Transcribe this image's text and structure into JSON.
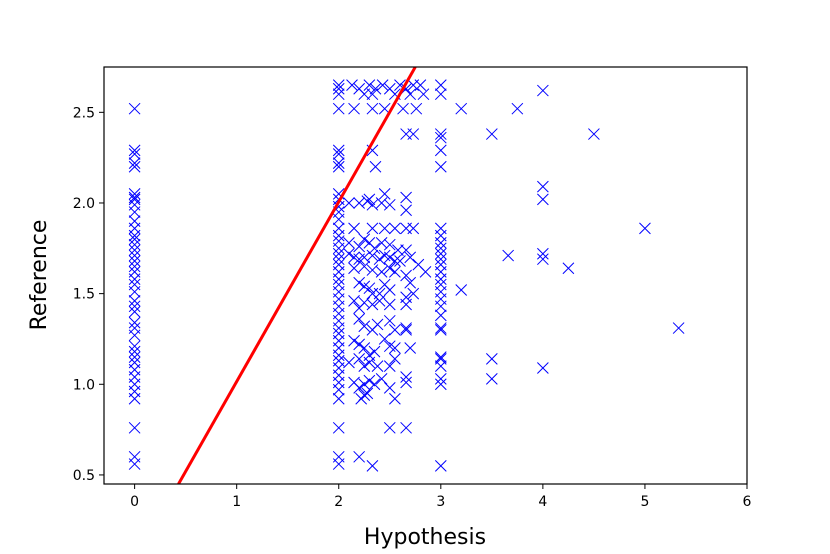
{
  "chart_data": {
    "type": "scatter",
    "title": "",
    "xlabel": "Hypothesis",
    "ylabel": "Reference",
    "xlim": [
      -0.3,
      6.0
    ],
    "ylim": [
      0.45,
      2.75
    ],
    "grid": false,
    "x_ticks": [
      "0",
      "1",
      "2",
      "3",
      "4",
      "5",
      "6"
    ],
    "y_ticks": [
      "0.5",
      "1.0",
      "1.5",
      "2.0",
      "2.5"
    ],
    "marker": "x",
    "marker_color": "#0000ff",
    "line_color": "#ff0000",
    "series": [
      {
        "type": "scatter",
        "points": [
          [
            0,
            2.52
          ],
          [
            0,
            2.29
          ],
          [
            0,
            2.27
          ],
          [
            0,
            2.22
          ],
          [
            0,
            2.2
          ],
          [
            0,
            2.05
          ],
          [
            0,
            2.03
          ],
          [
            0,
            2.02
          ],
          [
            0,
            1.99
          ],
          [
            0,
            1.95
          ],
          [
            0,
            1.9
          ],
          [
            0,
            1.86
          ],
          [
            0,
            1.82
          ],
          [
            0,
            1.8
          ],
          [
            0,
            1.77
          ],
          [
            0,
            1.74
          ],
          [
            0,
            1.71
          ],
          [
            0,
            1.68
          ],
          [
            0,
            1.65
          ],
          [
            0,
            1.62
          ],
          [
            0,
            1.58
          ],
          [
            0,
            1.55
          ],
          [
            0,
            1.51
          ],
          [
            0,
            1.46
          ],
          [
            0,
            1.43
          ],
          [
            0,
            1.4
          ],
          [
            0,
            1.34
          ],
          [
            0,
            1.31
          ],
          [
            0,
            1.27
          ],
          [
            0,
            1.21
          ],
          [
            0,
            1.18
          ],
          [
            0,
            1.15
          ],
          [
            0,
            1.12
          ],
          [
            0,
            1.08
          ],
          [
            0,
            1.04
          ],
          [
            0,
            1.0
          ],
          [
            0,
            0.96
          ],
          [
            0,
            0.92
          ],
          [
            0,
            0.76
          ],
          [
            0,
            0.6
          ],
          [
            0,
            0.56
          ],
          [
            2,
            2.65
          ],
          [
            2,
            2.63
          ],
          [
            2,
            2.6
          ],
          [
            2,
            2.52
          ],
          [
            2,
            2.29
          ],
          [
            2,
            2.27
          ],
          [
            2,
            2.22
          ],
          [
            2,
            2.2
          ],
          [
            2,
            2.05
          ],
          [
            2,
            2.02
          ],
          [
            2,
            1.98
          ],
          [
            2,
            1.95
          ],
          [
            2,
            1.91
          ],
          [
            2,
            1.86
          ],
          [
            2,
            1.82
          ],
          [
            2,
            1.79
          ],
          [
            2,
            1.75
          ],
          [
            2,
            1.72
          ],
          [
            2,
            1.69
          ],
          [
            2,
            1.66
          ],
          [
            2,
            1.62
          ],
          [
            2,
            1.58
          ],
          [
            2,
            1.55
          ],
          [
            2,
            1.51
          ],
          [
            2,
            1.47
          ],
          [
            2,
            1.43
          ],
          [
            2,
            1.39
          ],
          [
            2,
            1.35
          ],
          [
            2,
            1.31
          ],
          [
            2,
            1.28
          ],
          [
            2,
            1.24
          ],
          [
            2,
            1.2
          ],
          [
            2,
            1.16
          ],
          [
            2,
            1.13
          ],
          [
            2,
            1.09
          ],
          [
            2,
            1.05
          ],
          [
            2,
            1.01
          ],
          [
            2,
            0.97
          ],
          [
            2,
            0.92
          ],
          [
            2,
            0.76
          ],
          [
            2,
            0.6
          ],
          [
            2,
            0.56
          ],
          [
            2.13,
            2.65
          ],
          [
            2.2,
            2.63
          ],
          [
            2.3,
            2.65
          ],
          [
            2.36,
            2.63
          ],
          [
            2.43,
            2.65
          ],
          [
            2.5,
            2.63
          ],
          [
            2.6,
            2.65
          ],
          [
            2.66,
            2.63
          ],
          [
            2.73,
            2.65
          ],
          [
            2.8,
            2.65
          ],
          [
            2.25,
            2.6
          ],
          [
            2.33,
            2.6
          ],
          [
            2.55,
            2.6
          ],
          [
            2.7,
            2.6
          ],
          [
            2.83,
            2.6
          ],
          [
            2.15,
            2.52
          ],
          [
            2.33,
            2.52
          ],
          [
            2.45,
            2.52
          ],
          [
            2.63,
            2.52
          ],
          [
            2.76,
            2.52
          ],
          [
            2.66,
            2.38
          ],
          [
            2.73,
            2.38
          ],
          [
            2.33,
            2.29
          ],
          [
            2.36,
            2.2
          ],
          [
            2.45,
            2.05
          ],
          [
            2.1,
            2.0
          ],
          [
            2.2,
            2.0
          ],
          [
            2.28,
            2.01
          ],
          [
            2.33,
            1.99
          ],
          [
            2.42,
            2.0
          ],
          [
            2.5,
            1.99
          ],
          [
            2.66,
            2.03
          ],
          [
            2.66,
            1.96
          ],
          [
            2.3,
            2.02
          ],
          [
            2.15,
            1.86
          ],
          [
            2.33,
            1.86
          ],
          [
            2.45,
            1.86
          ],
          [
            2.55,
            1.86
          ],
          [
            2.66,
            1.86
          ],
          [
            2.73,
            1.86
          ],
          [
            2.1,
            1.78
          ],
          [
            2.2,
            1.76
          ],
          [
            2.25,
            1.8
          ],
          [
            2.3,
            1.78
          ],
          [
            2.35,
            1.75
          ],
          [
            2.42,
            1.78
          ],
          [
            2.5,
            1.77
          ],
          [
            2.58,
            1.74
          ],
          [
            2.66,
            1.74
          ],
          [
            2.7,
            1.7
          ],
          [
            2.1,
            1.72
          ],
          [
            2.15,
            1.7
          ],
          [
            2.2,
            1.69
          ],
          [
            2.25,
            1.7
          ],
          [
            2.33,
            1.71
          ],
          [
            2.4,
            1.69
          ],
          [
            2.45,
            1.71
          ],
          [
            2.5,
            1.7
          ],
          [
            2.55,
            1.68
          ],
          [
            2.6,
            1.68
          ],
          [
            2.78,
            1.66
          ],
          [
            2.85,
            1.62
          ],
          [
            2.15,
            1.64
          ],
          [
            2.25,
            1.65
          ],
          [
            2.33,
            1.63
          ],
          [
            2.42,
            1.62
          ],
          [
            2.5,
            1.64
          ],
          [
            2.55,
            1.62
          ],
          [
            2.66,
            1.6
          ],
          [
            2.7,
            1.56
          ],
          [
            2.2,
            1.56
          ],
          [
            2.25,
            1.54
          ],
          [
            2.3,
            1.53
          ],
          [
            2.33,
            1.5
          ],
          [
            2.4,
            1.5
          ],
          [
            2.45,
            1.55
          ],
          [
            2.5,
            1.52
          ],
          [
            2.66,
            1.48
          ],
          [
            2.73,
            1.5
          ],
          [
            2.15,
            1.46
          ],
          [
            2.2,
            1.42
          ],
          [
            2.25,
            1.45
          ],
          [
            2.33,
            1.44
          ],
          [
            2.4,
            1.46
          ],
          [
            2.5,
            1.44
          ],
          [
            2.66,
            1.44
          ],
          [
            2.2,
            1.36
          ],
          [
            2.25,
            1.32
          ],
          [
            2.33,
            1.3
          ],
          [
            2.38,
            1.33
          ],
          [
            2.5,
            1.35
          ],
          [
            2.55,
            1.3
          ],
          [
            2.66,
            1.3
          ],
          [
            2.66,
            1.31
          ],
          [
            2.15,
            1.24
          ],
          [
            2.2,
            1.22
          ],
          [
            2.25,
            1.2
          ],
          [
            2.3,
            1.16
          ],
          [
            2.35,
            1.18
          ],
          [
            2.45,
            1.25
          ],
          [
            2.5,
            1.21
          ],
          [
            2.55,
            1.2
          ],
          [
            2.7,
            1.2
          ],
          [
            2.1,
            1.12
          ],
          [
            2.2,
            1.14
          ],
          [
            2.25,
            1.1
          ],
          [
            2.3,
            1.12
          ],
          [
            2.38,
            1.1
          ],
          [
            2.5,
            1.1
          ],
          [
            2.55,
            1.14
          ],
          [
            2.15,
            1.01
          ],
          [
            2.2,
            0.98
          ],
          [
            2.25,
            1.0
          ],
          [
            2.28,
            0.95
          ],
          [
            2.3,
            1.02
          ],
          [
            2.35,
            1.0
          ],
          [
            2.42,
            1.03
          ],
          [
            2.5,
            0.98
          ],
          [
            2.55,
            0.92
          ],
          [
            2.66,
            1.01
          ],
          [
            2.66,
            1.04
          ],
          [
            2.22,
            0.92
          ],
          [
            2.25,
            0.94
          ],
          [
            2.5,
            0.76
          ],
          [
            2.66,
            0.76
          ],
          [
            2.2,
            0.6
          ],
          [
            2.33,
            0.55
          ],
          [
            3,
            2.65
          ],
          [
            3,
            2.6
          ],
          [
            3,
            2.38
          ],
          [
            3,
            2.36
          ],
          [
            3,
            2.29
          ],
          [
            3,
            2.2
          ],
          [
            3,
            1.86
          ],
          [
            3,
            1.82
          ],
          [
            3,
            1.78
          ],
          [
            3,
            1.75
          ],
          [
            3,
            1.72
          ],
          [
            3,
            1.69
          ],
          [
            3,
            1.66
          ],
          [
            3,
            1.62
          ],
          [
            3,
            1.58
          ],
          [
            3,
            1.55
          ],
          [
            3,
            1.51
          ],
          [
            3,
            1.47
          ],
          [
            3,
            1.43
          ],
          [
            3,
            1.38
          ],
          [
            3,
            1.31
          ],
          [
            3,
            1.3
          ],
          [
            3,
            1.15
          ],
          [
            3,
            1.14
          ],
          [
            3,
            1.1
          ],
          [
            3,
            1.03
          ],
          [
            3,
            1.0
          ],
          [
            3,
            0.55
          ],
          [
            3.2,
            2.52
          ],
          [
            3.2,
            1.52
          ],
          [
            3.5,
            2.38
          ],
          [
            3.5,
            1.14
          ],
          [
            3.5,
            1.03
          ],
          [
            3.66,
            1.71
          ],
          [
            3.75,
            2.52
          ],
          [
            4,
            2.62
          ],
          [
            4,
            2.09
          ],
          [
            4,
            2.02
          ],
          [
            4,
            1.72
          ],
          [
            4,
            1.69
          ],
          [
            4,
            1.09
          ],
          [
            4.25,
            1.64
          ],
          [
            4.5,
            2.38
          ],
          [
            5,
            1.86
          ],
          [
            5.33,
            1.31
          ]
        ]
      },
      {
        "type": "line",
        "points": [
          [
            0.43,
            0.45
          ],
          [
            2.75,
            2.75
          ]
        ]
      }
    ]
  }
}
